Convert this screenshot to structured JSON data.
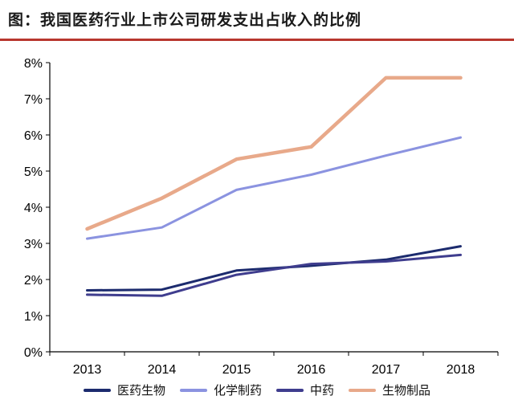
{
  "title": "图：我国医药行业上市公司研发支出占收入的比例",
  "chart_data": {
    "type": "line",
    "x": [
      "2013",
      "2014",
      "2015",
      "2016",
      "2017",
      "2018"
    ],
    "y_ticks": [
      "0%",
      "1%",
      "2%",
      "3%",
      "4%",
      "5%",
      "6%",
      "7%",
      "8%"
    ],
    "ylim": [
      0,
      8
    ],
    "grid": false,
    "legend_position": "bottom",
    "series": [
      {
        "name": "医药生物",
        "color": "#1c2b6e",
        "values": [
          1.7,
          1.72,
          2.25,
          2.38,
          2.55,
          2.92
        ]
      },
      {
        "name": "化学制药",
        "color": "#8b93e0",
        "values": [
          3.13,
          3.44,
          4.48,
          4.9,
          5.43,
          5.93
        ]
      },
      {
        "name": "中药",
        "color": "#3f3d8e",
        "values": [
          1.58,
          1.55,
          2.13,
          2.43,
          2.5,
          2.68
        ]
      },
      {
        "name": "生物制品",
        "color": "#e8a98a",
        "values": [
          3.4,
          4.25,
          5.33,
          5.67,
          7.58,
          7.58
        ]
      }
    ]
  }
}
